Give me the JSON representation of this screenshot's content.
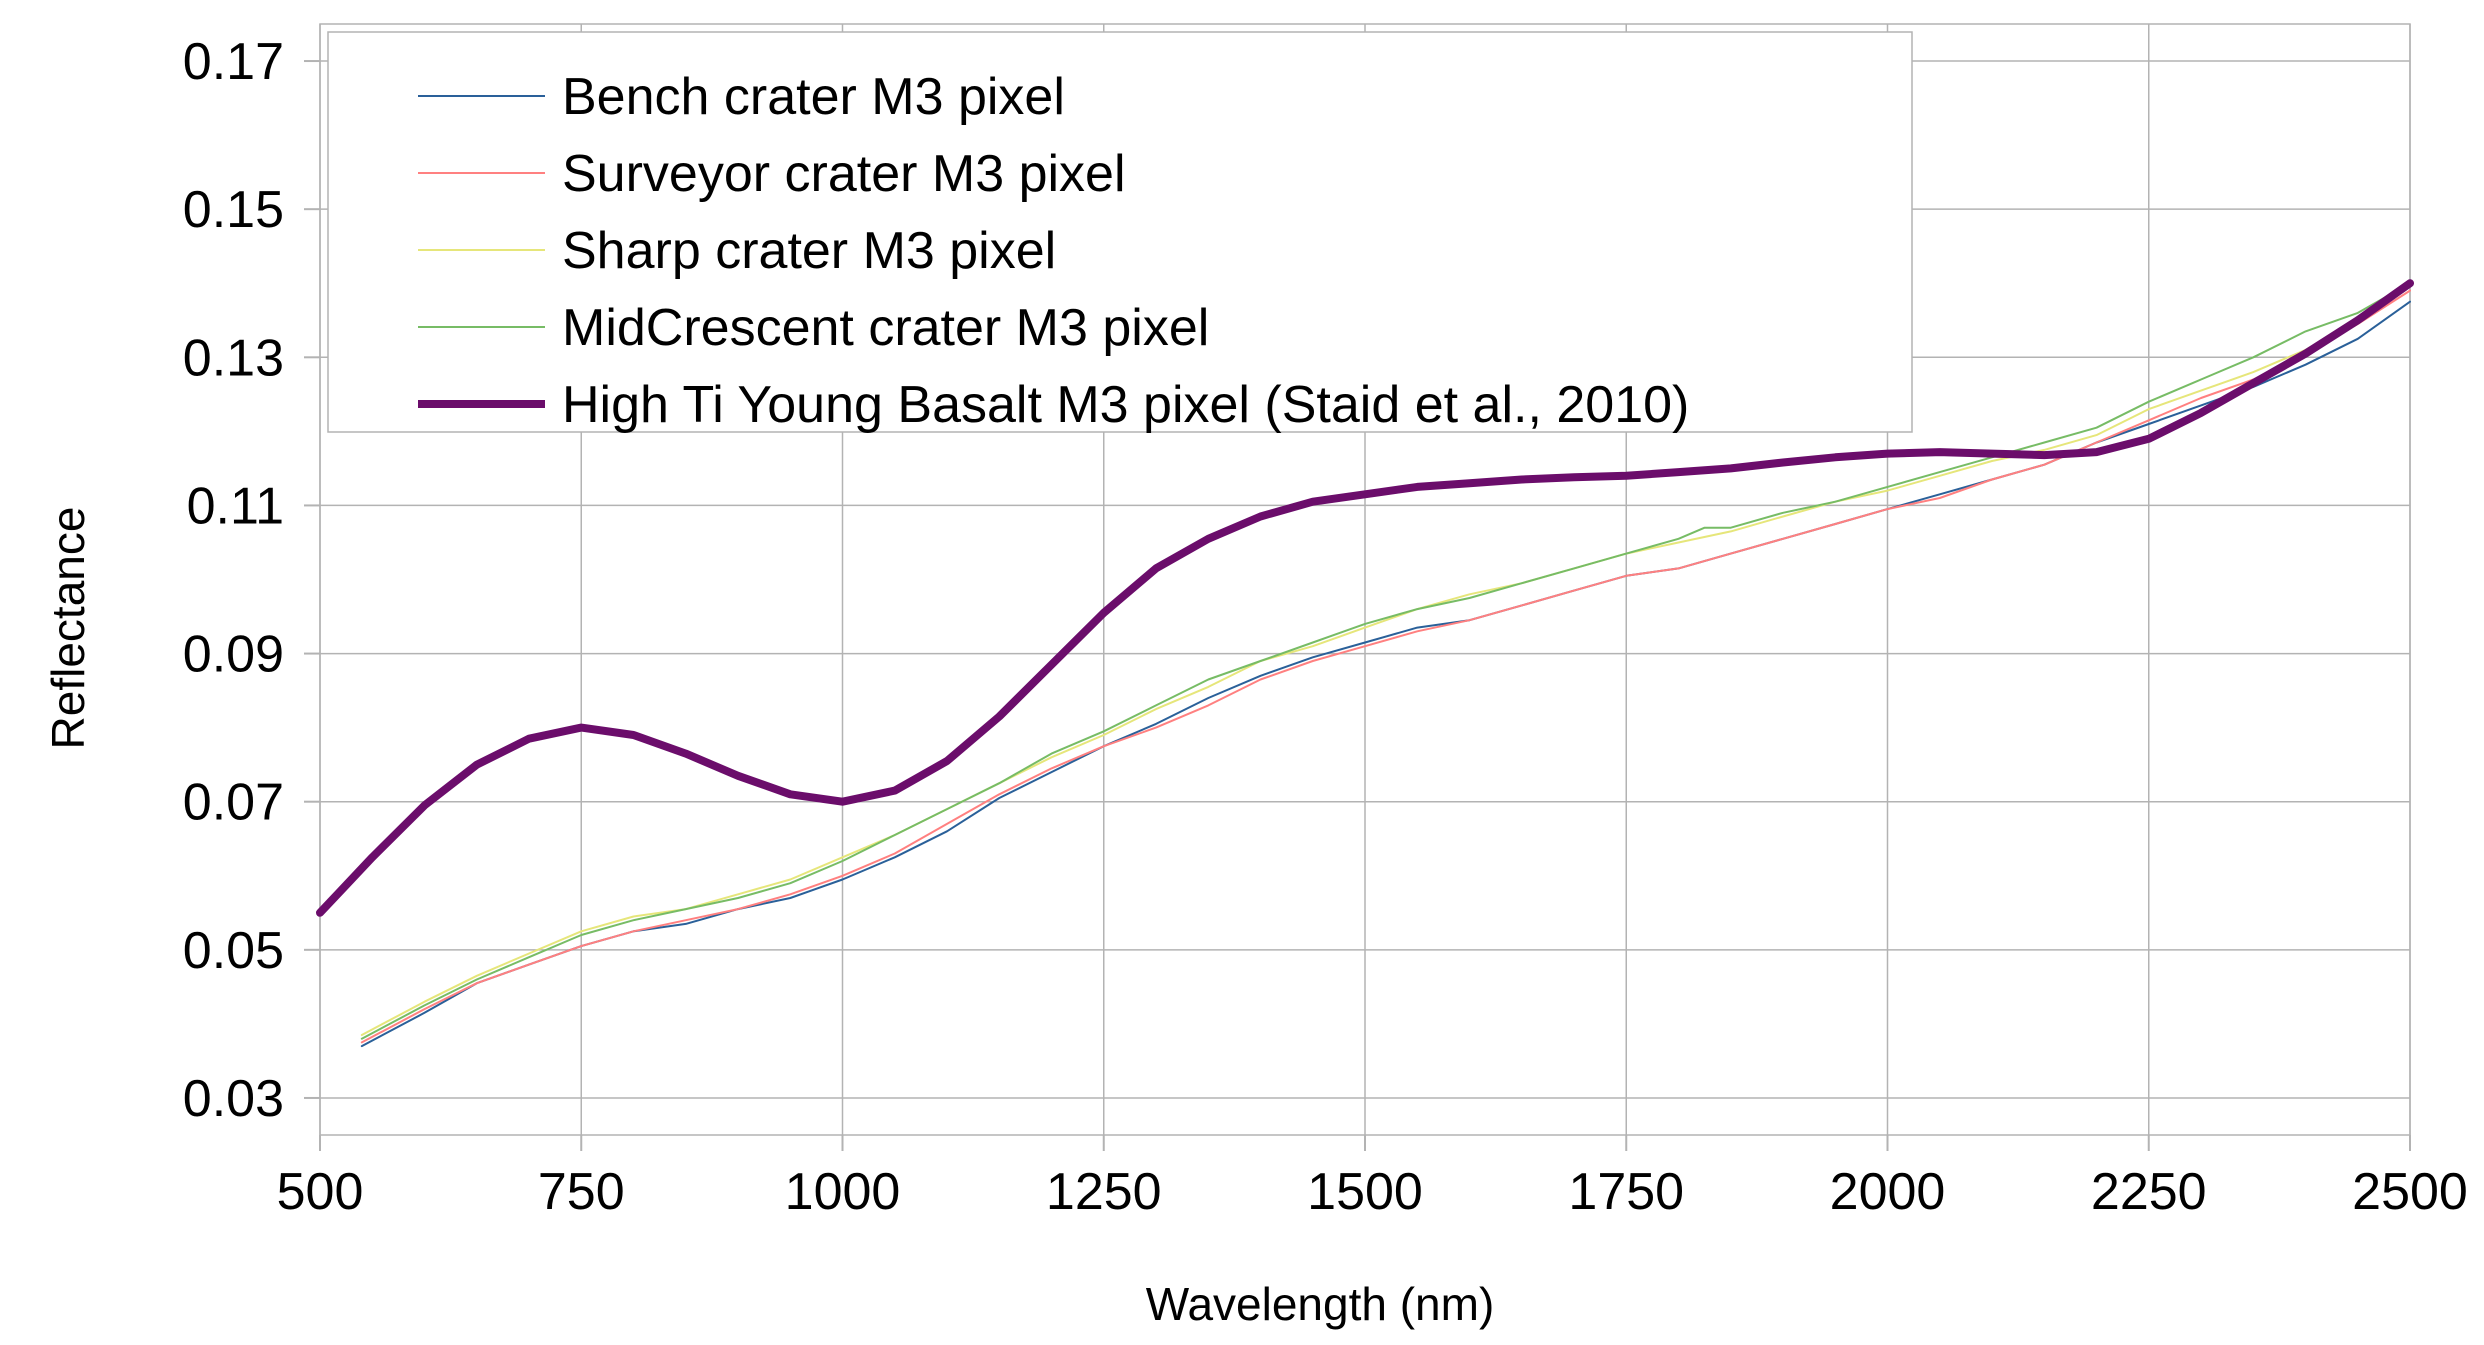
{
  "chart_data": {
    "type": "line",
    "title": "",
    "xlabel": "Wavelength (nm)",
    "ylabel": "Reflectance",
    "xlim": [
      500,
      2500
    ],
    "ylim": [
      0.025,
      0.175
    ],
    "x_ticks": [
      500,
      750,
      1000,
      1250,
      1500,
      1750,
      2000,
      2250,
      2500
    ],
    "x_tick_labels": [
      "500",
      "750",
      "1000",
      "1250",
      "1500",
      "1750",
      "2000",
      "2250",
      "2500"
    ],
    "y_ticks": [
      0.03,
      0.05,
      0.07,
      0.09,
      0.11,
      0.13,
      0.15,
      0.17
    ],
    "y_tick_labels": [
      "0.03",
      "0.05",
      "0.07",
      "0.09",
      "0.11",
      "0.13",
      "0.15",
      "0.17"
    ],
    "grid": true,
    "legend_position": "top-left",
    "series": [
      {
        "name": "Bench crater M3 pixel",
        "color": "#2a6099",
        "width": 2,
        "x": [
          540,
          600,
          650,
          700,
          750,
          800,
          850,
          900,
          950,
          1000,
          1050,
          1100,
          1150,
          1200,
          1250,
          1300,
          1350,
          1400,
          1450,
          1500,
          1550,
          1600,
          1650,
          1700,
          1750,
          1800,
          1850,
          1900,
          1950,
          2000,
          2050,
          2100,
          2150,
          2200,
          2250,
          2300,
          2350,
          2400,
          2450,
          2500
        ],
        "y": [
          0.037,
          0.0415,
          0.0455,
          0.048,
          0.0505,
          0.0525,
          0.0535,
          0.0555,
          0.057,
          0.0595,
          0.0625,
          0.066,
          0.0705,
          0.074,
          0.0775,
          0.0805,
          0.084,
          0.087,
          0.0895,
          0.0915,
          0.0935,
          0.0945,
          0.0965,
          0.0985,
          0.1005,
          0.1015,
          0.1035,
          0.1055,
          0.1075,
          0.1095,
          0.1115,
          0.1135,
          0.1155,
          0.1185,
          0.121,
          0.1235,
          0.126,
          0.129,
          0.1325,
          0.1375
        ]
      },
      {
        "name": "Surveyor crater M3 pixel",
        "color": "#ff8080",
        "width": 2,
        "x": [
          540,
          600,
          650,
          700,
          750,
          800,
          850,
          900,
          950,
          1000,
          1050,
          1100,
          1150,
          1200,
          1250,
          1300,
          1350,
          1400,
          1450,
          1500,
          1550,
          1600,
          1650,
          1700,
          1750,
          1800,
          1850,
          1900,
          1950,
          2000,
          2050,
          2100,
          2150,
          2200,
          2250,
          2300,
          2350,
          2400,
          2450,
          2500
        ],
        "y": [
          0.0375,
          0.042,
          0.0455,
          0.048,
          0.0505,
          0.0525,
          0.054,
          0.0555,
          0.0575,
          0.06,
          0.063,
          0.067,
          0.071,
          0.0745,
          0.0775,
          0.08,
          0.083,
          0.0865,
          0.089,
          0.091,
          0.093,
          0.0945,
          0.0965,
          0.0985,
          0.1005,
          0.1015,
          0.1035,
          0.1055,
          0.1075,
          0.1095,
          0.111,
          0.1135,
          0.1155,
          0.1185,
          0.1215,
          0.1245,
          0.127,
          0.1305,
          0.1345,
          0.139
        ]
      },
      {
        "name": "Sharp crater M3 pixel",
        "color": "#e6e67a",
        "width": 2,
        "x": [
          540,
          600,
          650,
          700,
          750,
          800,
          850,
          900,
          950,
          1000,
          1050,
          1100,
          1150,
          1200,
          1250,
          1300,
          1350,
          1400,
          1450,
          1500,
          1550,
          1600,
          1650,
          1700,
          1750,
          1800,
          1850,
          1900,
          1950,
          2000,
          2050,
          2100,
          2150,
          2200,
          2250,
          2300,
          2350,
          2400,
          2450,
          2500
        ],
        "y": [
          0.0385,
          0.043,
          0.0465,
          0.0495,
          0.0525,
          0.0545,
          0.0555,
          0.0575,
          0.0595,
          0.0625,
          0.0655,
          0.069,
          0.0725,
          0.076,
          0.079,
          0.0825,
          0.0855,
          0.089,
          0.091,
          0.0935,
          0.096,
          0.098,
          0.0995,
          0.1015,
          0.1035,
          0.105,
          0.1065,
          0.1085,
          0.1105,
          0.112,
          0.114,
          0.116,
          0.1175,
          0.1195,
          0.123,
          0.1255,
          0.128,
          0.131,
          0.135,
          0.14
        ]
      },
      {
        "name": "MidCrescent crater M3 pixel",
        "color": "#77bc65",
        "width": 2,
        "x": [
          540,
          600,
          650,
          700,
          750,
          800,
          850,
          900,
          950,
          1000,
          1050,
          1100,
          1150,
          1200,
          1250,
          1300,
          1350,
          1400,
          1450,
          1500,
          1550,
          1600,
          1650,
          1700,
          1750,
          1800,
          1825,
          1850,
          1900,
          1950,
          2000,
          2050,
          2100,
          2150,
          2200,
          2250,
          2300,
          2350,
          2400,
          2450,
          2500
        ],
        "y": [
          0.038,
          0.0425,
          0.046,
          0.049,
          0.052,
          0.054,
          0.0555,
          0.057,
          0.059,
          0.062,
          0.0655,
          0.069,
          0.0725,
          0.0765,
          0.0795,
          0.083,
          0.0865,
          0.089,
          0.0915,
          0.094,
          0.096,
          0.0975,
          0.0995,
          0.1015,
          0.1035,
          0.1055,
          0.107,
          0.107,
          0.109,
          0.1105,
          0.1125,
          0.1145,
          0.1165,
          0.1185,
          0.1205,
          0.124,
          0.127,
          0.13,
          0.1335,
          0.136,
          0.14
        ]
      },
      {
        "name": "High Ti Young Basalt M3 pixel (Staid et al., 2010)",
        "color": "#6b0d6b",
        "width": 8,
        "x": [
          500,
          550,
          600,
          650,
          700,
          750,
          800,
          850,
          900,
          950,
          1000,
          1050,
          1100,
          1150,
          1200,
          1250,
          1300,
          1350,
          1400,
          1450,
          1500,
          1550,
          1600,
          1650,
          1700,
          1750,
          1800,
          1850,
          1900,
          1950,
          2000,
          2050,
          2100,
          2150,
          2200,
          2250,
          2300,
          2350,
          2400,
          2450,
          2500
        ],
        "y": [
          0.055,
          0.0625,
          0.0695,
          0.075,
          0.0785,
          0.08,
          0.079,
          0.0765,
          0.0735,
          0.071,
          0.07,
          0.0715,
          0.0755,
          0.0815,
          0.0885,
          0.0955,
          0.1015,
          0.1055,
          0.1085,
          0.1105,
          0.1115,
          0.1125,
          0.113,
          0.1135,
          0.1138,
          0.114,
          0.1145,
          0.115,
          0.1158,
          0.1165,
          0.117,
          0.1172,
          0.117,
          0.1168,
          0.1172,
          0.119,
          0.1225,
          0.1265,
          0.1305,
          0.135,
          0.14
        ]
      }
    ]
  }
}
